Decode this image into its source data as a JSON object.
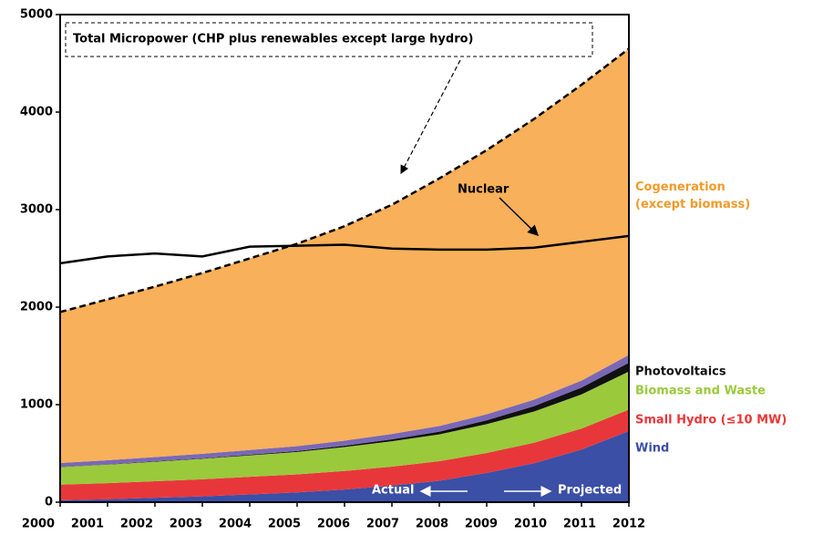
{
  "chart_data": {
    "type": "area",
    "stacked": true,
    "x": [
      2000,
      2001,
      2002,
      2003,
      2004,
      2005,
      2006,
      2007,
      2008,
      2009,
      2010,
      2011,
      2012
    ],
    "xlim": [
      2000,
      2012
    ],
    "xticks": [
      2000,
      2001,
      2002,
      2003,
      2004,
      2005,
      2006,
      2007,
      2008,
      2009,
      2010,
      2011,
      2012
    ],
    "ylim": [
      0,
      5000
    ],
    "yticks": [
      0,
      1000,
      2000,
      3000,
      4000,
      5000
    ],
    "series": [
      {
        "name": "Wind",
        "color": "#3b4fa6",
        "values": [
          20,
          30,
          45,
          60,
          80,
          100,
          130,
          170,
          220,
          300,
          400,
          540,
          730
        ]
      },
      {
        "name": "Small Hydro (≤10 MW)",
        "color": "#e8373a",
        "values": [
          160,
          165,
          170,
          175,
          180,
          185,
          190,
          195,
          200,
          205,
          210,
          215,
          220
        ]
      },
      {
        "name": "Biomass and Waste",
        "color": "#9bc93c",
        "values": [
          180,
          190,
          200,
          210,
          220,
          230,
          245,
          260,
          275,
          295,
          320,
          350,
          390
        ]
      },
      {
        "name": "Photovoltaics",
        "color": "#111111",
        "values": [
          2,
          3,
          4,
          5,
          7,
          10,
          14,
          20,
          28,
          40,
          55,
          70,
          90
        ]
      },
      {
        "color": "#7a68b6",
        "values": [
          40,
          42,
          44,
          46,
          48,
          50,
          52,
          55,
          58,
          62,
          66,
          72,
          80
        ]
      },
      {
        "name": "Cogeneration (except biomass)",
        "color": "#f8b05a",
        "values": [
          1548,
          1650,
          1747,
          1854,
          1965,
          2075,
          2199,
          2350,
          2539,
          2708,
          2879,
          3033,
          3140
        ]
      }
    ],
    "lines": [
      {
        "name": "Total Micropower (CHP plus renewables except large hydro)",
        "color": "#000000",
        "style": "dashed",
        "values": [
          1950,
          2080,
          2210,
          2350,
          2500,
          2650,
          2830,
          3050,
          3320,
          3610,
          3930,
          4280,
          4650
        ]
      },
      {
        "name": "Nuclear",
        "color": "#000000",
        "style": "solid",
        "values": [
          2450,
          2520,
          2550,
          2520,
          2620,
          2630,
          2640,
          2600,
          2590,
          2590,
          2610,
          2670,
          2730
        ]
      }
    ],
    "annotations": [
      "Actual",
      "Projected"
    ]
  }
}
